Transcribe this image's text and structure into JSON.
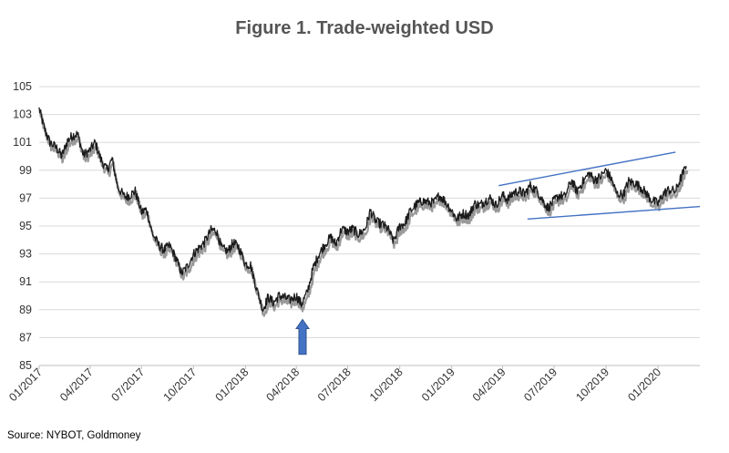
{
  "title": "Figure 1. Trade-weighted USD",
  "source": "Source: NYBOT, Goldmoney",
  "colors": {
    "series": "#1a1a1a",
    "series_shadow": "#9a9a9a",
    "grid": "#d9d9d9",
    "trendline": "#4472c4",
    "arrow": "#4472c4"
  },
  "chart_data": {
    "type": "line",
    "title": "Figure 1. Trade-weighted USD",
    "xlabel": "",
    "ylabel": "",
    "ylim": [
      85,
      105
    ],
    "xlim": [
      "2017-01-01",
      "2020-03-15"
    ],
    "grid": true,
    "legend": "none",
    "yticks": [
      85,
      87,
      89,
      91,
      93,
      95,
      97,
      99,
      101,
      103,
      105
    ],
    "xtick_labels": [
      "01/2017",
      "04/2017",
      "07/2017",
      "10/2017",
      "01/2018",
      "04/2018",
      "07/2018",
      "10/2018",
      "01/2019",
      "04/2019",
      "07/2019",
      "10/2019",
      "01/2020"
    ],
    "series": [
      {
        "points": [
          [
            "2017-01-01",
            103.4
          ],
          [
            "2017-01-10",
            102.0
          ],
          [
            "2017-01-20",
            101.0
          ],
          [
            "2017-02-01",
            100.6
          ],
          [
            "2017-02-10",
            100.0
          ],
          [
            "2017-02-20",
            101.1
          ],
          [
            "2017-03-01",
            101.5
          ],
          [
            "2017-03-10",
            101.6
          ],
          [
            "2017-03-20",
            100.1
          ],
          [
            "2017-03-31",
            100.4
          ],
          [
            "2017-04-10",
            101.0
          ],
          [
            "2017-04-20",
            99.8
          ],
          [
            "2017-05-01",
            99.0
          ],
          [
            "2017-05-10",
            99.8
          ],
          [
            "2017-05-20",
            97.8
          ],
          [
            "2017-06-01",
            97.1
          ],
          [
            "2017-06-10",
            97.2
          ],
          [
            "2017-06-20",
            97.5
          ],
          [
            "2017-07-01",
            96.0
          ],
          [
            "2017-07-10",
            96.2
          ],
          [
            "2017-07-20",
            94.5
          ],
          [
            "2017-08-01",
            93.6
          ],
          [
            "2017-08-10",
            93.3
          ],
          [
            "2017-08-20",
            93.6
          ],
          [
            "2017-09-01",
            92.6
          ],
          [
            "2017-09-10",
            91.6
          ],
          [
            "2017-09-20",
            92.1
          ],
          [
            "2017-10-01",
            93.0
          ],
          [
            "2017-10-10",
            93.4
          ],
          [
            "2017-10-20",
            93.8
          ],
          [
            "2017-11-01",
            94.7
          ],
          [
            "2017-11-10",
            94.7
          ],
          [
            "2017-11-20",
            93.4
          ],
          [
            "2017-12-01",
            93.2
          ],
          [
            "2017-12-10",
            93.8
          ],
          [
            "2017-12-20",
            93.5
          ],
          [
            "2018-01-01",
            92.3
          ],
          [
            "2018-01-10",
            92.2
          ],
          [
            "2018-01-20",
            90.6
          ],
          [
            "2018-02-01",
            89.0
          ],
          [
            "2018-02-10",
            89.9
          ],
          [
            "2018-02-20",
            89.5
          ],
          [
            "2018-03-01",
            90.0
          ],
          [
            "2018-03-10",
            89.9
          ],
          [
            "2018-03-20",
            89.7
          ],
          [
            "2018-04-01",
            90.0
          ],
          [
            "2018-04-10",
            89.4
          ],
          [
            "2018-04-20",
            90.2
          ],
          [
            "2018-05-01",
            92.0
          ],
          [
            "2018-05-10",
            92.9
          ],
          [
            "2018-05-20",
            93.6
          ],
          [
            "2018-06-01",
            94.2
          ],
          [
            "2018-06-10",
            93.7
          ],
          [
            "2018-06-20",
            94.8
          ],
          [
            "2018-07-01",
            94.6
          ],
          [
            "2018-07-10",
            94.8
          ],
          [
            "2018-07-20",
            94.4
          ],
          [
            "2018-08-01",
            94.8
          ],
          [
            "2018-08-10",
            96.1
          ],
          [
            "2018-08-20",
            95.3
          ],
          [
            "2018-09-01",
            95.1
          ],
          [
            "2018-09-10",
            94.8
          ],
          [
            "2018-09-20",
            93.9
          ],
          [
            "2018-10-01",
            95.0
          ],
          [
            "2018-10-10",
            95.2
          ],
          [
            "2018-10-20",
            96.1
          ],
          [
            "2018-11-01",
            96.6
          ],
          [
            "2018-11-10",
            96.8
          ],
          [
            "2018-11-20",
            96.7
          ],
          [
            "2018-12-01",
            96.7
          ],
          [
            "2018-12-10",
            97.2
          ],
          [
            "2018-12-20",
            96.8
          ],
          [
            "2019-01-01",
            96.1
          ],
          [
            "2019-01-10",
            95.5
          ],
          [
            "2019-01-20",
            95.9
          ],
          [
            "2019-02-01",
            95.8
          ],
          [
            "2019-02-10",
            96.6
          ],
          [
            "2019-02-20",
            96.5
          ],
          [
            "2019-03-01",
            96.8
          ],
          [
            "2019-03-10",
            97.0
          ],
          [
            "2019-03-20",
            96.5
          ],
          [
            "2019-04-01",
            97.2
          ],
          [
            "2019-04-10",
            96.9
          ],
          [
            "2019-04-20",
            97.4
          ],
          [
            "2019-05-01",
            97.5
          ],
          [
            "2019-05-10",
            97.3
          ],
          [
            "2019-05-20",
            97.9
          ],
          [
            "2019-06-01",
            97.5
          ],
          [
            "2019-06-10",
            96.9
          ],
          [
            "2019-06-20",
            96.3
          ],
          [
            "2019-07-01",
            96.8
          ],
          [
            "2019-07-10",
            97.2
          ],
          [
            "2019-07-20",
            97.1
          ],
          [
            "2019-08-01",
            98.3
          ],
          [
            "2019-08-10",
            97.5
          ],
          [
            "2019-08-20",
            98.1
          ],
          [
            "2019-09-01",
            98.8
          ],
          [
            "2019-09-10",
            98.3
          ],
          [
            "2019-09-20",
            98.5
          ],
          [
            "2019-10-01",
            99.0
          ],
          [
            "2019-10-10",
            98.4
          ],
          [
            "2019-10-20",
            97.3
          ],
          [
            "2019-11-01",
            97.3
          ],
          [
            "2019-11-10",
            98.2
          ],
          [
            "2019-11-20",
            98.1
          ],
          [
            "2019-12-01",
            97.8
          ],
          [
            "2019-12-10",
            97.4
          ],
          [
            "2019-12-20",
            96.9
          ],
          [
            "2020-01-01",
            96.6
          ],
          [
            "2020-01-10",
            97.3
          ],
          [
            "2020-01-20",
            97.6
          ],
          [
            "2020-02-01",
            97.5
          ],
          [
            "2020-02-10",
            98.4
          ],
          [
            "2020-02-20",
            99.3
          ]
        ]
      }
    ],
    "trendlines": [
      {
        "from": [
          "2019-03-25",
          97.9
        ],
        "to": [
          "2020-02-01",
          100.3
        ]
      },
      {
        "from": [
          "2019-05-15",
          95.5
        ],
        "to": [
          "2020-03-15",
          96.4
        ]
      }
    ],
    "annotations": [
      {
        "type": "arrow",
        "direction": "up",
        "date": "2018-04-12",
        "from": 85.8,
        "to": 88.3
      }
    ]
  }
}
